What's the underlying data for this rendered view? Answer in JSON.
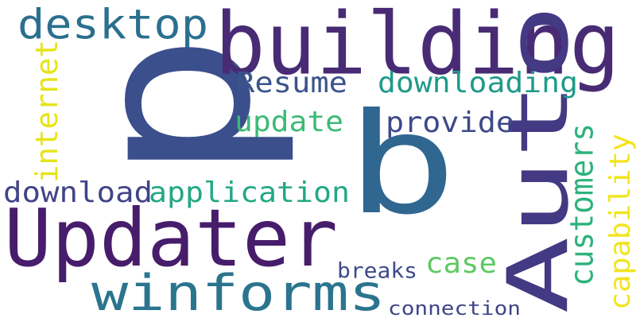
{
  "background": "#ffffff",
  "palette": [
    "#440154",
    "#443a83",
    "#31688e",
    "#21918c",
    "#35b779",
    "#90d743",
    "#fde725"
  ],
  "words": [
    {
      "id": "p",
      "text": "p",
      "color": "#3b4f8c",
      "orientation": "vertical"
    },
    {
      "id": "b",
      "text": "b",
      "color": "#2f6790",
      "orientation": "horizontal"
    },
    {
      "id": "building",
      "text": "building",
      "color": "#482b74",
      "orientation": "horizontal"
    },
    {
      "id": "desktop",
      "text": "desktop",
      "color": "#2b6f8e",
      "orientation": "horizontal"
    },
    {
      "id": "Updater",
      "text": "Updater",
      "color": "#471d6b",
      "orientation": "horizontal"
    },
    {
      "id": "Auto",
      "text": "Auto",
      "color": "#443983",
      "orientation": "vertical"
    },
    {
      "id": "winforms",
      "text": "winforms",
      "color": "#2b748e",
      "orientation": "horizontal"
    },
    {
      "id": "Resume",
      "text": "Resume",
      "color": "#3a548c",
      "orientation": "horizontal"
    },
    {
      "id": "downloading",
      "text": "downloading",
      "color": "#1f9a8a",
      "orientation": "horizontal"
    },
    {
      "id": "update",
      "text": "update",
      "color": "#3cbb75",
      "orientation": "horizontal"
    },
    {
      "id": "provide",
      "text": "provide",
      "color": "#3e4989",
      "orientation": "horizontal"
    },
    {
      "id": "internet",
      "text": "internet",
      "color": "#e6e419",
      "orientation": "vertical"
    },
    {
      "id": "download",
      "text": "download",
      "color": "#414487",
      "orientation": "horizontal"
    },
    {
      "id": "application",
      "text": "application",
      "color": "#22a884",
      "orientation": "horizontal"
    },
    {
      "id": "customers",
      "text": "customers",
      "color": "#2db27d",
      "orientation": "vertical"
    },
    {
      "id": "capability",
      "text": "capability",
      "color": "#f1e51d",
      "orientation": "vertical"
    },
    {
      "id": "case",
      "text": "case",
      "color": "#5ec962",
      "orientation": "horizontal"
    },
    {
      "id": "breaks",
      "text": "breaks",
      "color": "#3e4a89",
      "orientation": "horizontal"
    },
    {
      "id": "connection",
      "text": "connection",
      "color": "#404688",
      "orientation": "horizontal"
    }
  ]
}
